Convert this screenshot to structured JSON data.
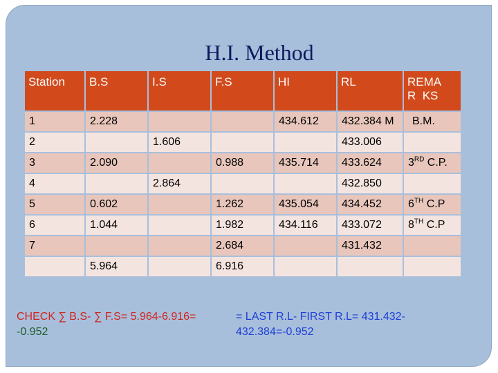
{
  "title": "H.I. Method",
  "colors": {
    "header_bg": "#d24a1c",
    "row_odd": "#e8c6bb",
    "row_even": "#f4e4df",
    "panel": "#a8bfdc",
    "title": "#0d1a5e"
  },
  "table": {
    "headers": [
      "Station",
      "B.S",
      "I.S",
      "F.S",
      "HI",
      "RL",
      "REMA R KS"
    ],
    "remarks_header_lines": [
      "REMA",
      "R  KS"
    ],
    "rows": [
      {
        "station": "1",
        "bs": "2.228",
        "is": "",
        "fs": "",
        "hi": "434.612",
        "rl": "432.384 M",
        "remarks": "B.M."
      },
      {
        "station": "2",
        "bs": "",
        "is": "1.606",
        "fs": "",
        "hi": "",
        "rl": "433.006",
        "remarks": ""
      },
      {
        "station": "3",
        "bs": "2.090",
        "is": "",
        "fs": "0.988",
        "hi": "435.714",
        "rl": "433.624",
        "remarks": "3RD C.P.",
        "remarks_pre": "3",
        "remarks_sup": "RD",
        "remarks_post": " C.P."
      },
      {
        "station": "4",
        "bs": "",
        "is": "2.864",
        "fs": "",
        "hi": "",
        "rl": "432.850",
        "remarks": ""
      },
      {
        "station": "5",
        "bs": "0.602",
        "is": "",
        "fs": "1.262",
        "hi": "435.054",
        "rl": "434.452",
        "remarks": "6TH C.P",
        "remarks_pre": "6",
        "remarks_sup": "TH",
        "remarks_post": " C.P"
      },
      {
        "station": "6",
        "bs": "1.044",
        "is": "",
        "fs": "1.982",
        "hi": "434.116",
        "rl": "433.072",
        "remarks": "8TH C.P",
        "remarks_pre": "8",
        "remarks_sup": "TH",
        "remarks_post": " C.P"
      },
      {
        "station": "7",
        "bs": "",
        "is": "",
        "fs": "2.684",
        "hi": "",
        "rl": "431.432",
        "remarks": ""
      },
      {
        "station": "",
        "bs": "5.964",
        "is": "",
        "fs": "6.916",
        "hi": "",
        "rl": "",
        "remarks": ""
      }
    ]
  },
  "check_left": {
    "text": "CHECK ∑ B.S-  ∑ F.S= 5.964-6.916=",
    "result": "-0.952"
  },
  "check_right": {
    "text": "= LAST R.L- FIRST R.L= 431.432-432.384=",
    "result": "-0.952"
  }
}
